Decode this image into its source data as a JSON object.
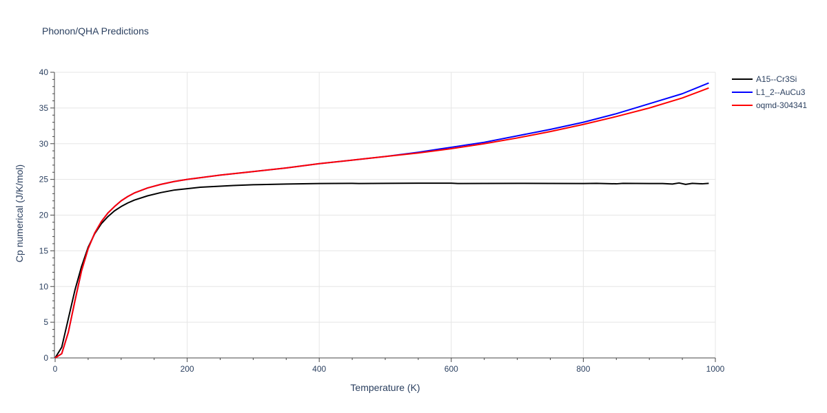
{
  "chart_data": {
    "type": "line",
    "title": "Phonon/QHA Predictions",
    "xlabel": "Temperature (K)",
    "ylabel": "Cp numerical (J/K/mol)",
    "xlim": [
      0,
      1000
    ],
    "ylim": [
      0,
      40
    ],
    "x_ticks": [
      0,
      200,
      400,
      600,
      800,
      1000
    ],
    "y_ticks": [
      0,
      5,
      10,
      15,
      20,
      25,
      30,
      35,
      40
    ],
    "x_tick_labels": [
      "0",
      "200",
      "400",
      "600",
      "800",
      "1000"
    ],
    "y_tick_labels": [
      "0",
      "5",
      "10",
      "15",
      "20",
      "25",
      "30",
      "35",
      "40"
    ],
    "grid": true,
    "legend_position": "top-right outside",
    "series": [
      {
        "name": "A15--Cr3Si",
        "color": "#000000",
        "points": [
          [
            0,
            0
          ],
          [
            10,
            1.5
          ],
          [
            20,
            5.5
          ],
          [
            30,
            9.5
          ],
          [
            40,
            12.8
          ],
          [
            50,
            15.5
          ],
          [
            60,
            17.4
          ],
          [
            70,
            18.8
          ],
          [
            80,
            19.8
          ],
          [
            90,
            20.6
          ],
          [
            100,
            21.2
          ],
          [
            110,
            21.7
          ],
          [
            120,
            22.1
          ],
          [
            140,
            22.7
          ],
          [
            160,
            23.15
          ],
          [
            180,
            23.5
          ],
          [
            200,
            23.7
          ],
          [
            220,
            23.9
          ],
          [
            250,
            24.05
          ],
          [
            270,
            24.15
          ],
          [
            300,
            24.25
          ],
          [
            350,
            24.35
          ],
          [
            400,
            24.42
          ],
          [
            450,
            24.45
          ],
          [
            460,
            24.42
          ],
          [
            500,
            24.45
          ],
          [
            550,
            24.47
          ],
          [
            600,
            24.47
          ],
          [
            610,
            24.42
          ],
          [
            650,
            24.43
          ],
          [
            700,
            24.45
          ],
          [
            750,
            24.44
          ],
          [
            800,
            24.42
          ],
          [
            820,
            24.45
          ],
          [
            850,
            24.38
          ],
          [
            860,
            24.45
          ],
          [
            900,
            24.42
          ],
          [
            920,
            24.42
          ],
          [
            935,
            24.35
          ],
          [
            945,
            24.5
          ],
          [
            955,
            24.3
          ],
          [
            965,
            24.45
          ],
          [
            980,
            24.38
          ],
          [
            990,
            24.45
          ]
        ]
      },
      {
        "name": "L1_2--AuCu3",
        "color": "#0000ff",
        "points": [
          [
            0,
            0
          ],
          [
            10,
            0.6
          ],
          [
            20,
            3.6
          ],
          [
            30,
            8.0
          ],
          [
            40,
            12.2
          ],
          [
            50,
            15.3
          ],
          [
            60,
            17.5
          ],
          [
            70,
            19.1
          ],
          [
            80,
            20.3
          ],
          [
            90,
            21.2
          ],
          [
            100,
            22.0
          ],
          [
            110,
            22.6
          ],
          [
            120,
            23.1
          ],
          [
            140,
            23.8
          ],
          [
            160,
            24.3
          ],
          [
            180,
            24.7
          ],
          [
            200,
            25.0
          ],
          [
            250,
            25.6
          ],
          [
            300,
            26.1
          ],
          [
            350,
            26.6
          ],
          [
            400,
            27.2
          ],
          [
            450,
            27.7
          ],
          [
            500,
            28.2
          ],
          [
            550,
            28.8
          ],
          [
            600,
            29.5
          ],
          [
            650,
            30.2
          ],
          [
            700,
            31.1
          ],
          [
            750,
            32.0
          ],
          [
            800,
            33.0
          ],
          [
            850,
            34.2
          ],
          [
            900,
            35.6
          ],
          [
            950,
            37.0
          ],
          [
            990,
            38.5
          ]
        ]
      },
      {
        "name": "oqmd-304341",
        "color": "#ff0000",
        "points": [
          [
            0,
            0
          ],
          [
            10,
            0.6
          ],
          [
            20,
            3.6
          ],
          [
            30,
            8.0
          ],
          [
            40,
            12.2
          ],
          [
            50,
            15.3
          ],
          [
            60,
            17.5
          ],
          [
            70,
            19.1
          ],
          [
            80,
            20.3
          ],
          [
            90,
            21.2
          ],
          [
            100,
            22.0
          ],
          [
            110,
            22.6
          ],
          [
            120,
            23.1
          ],
          [
            140,
            23.8
          ],
          [
            160,
            24.3
          ],
          [
            180,
            24.7
          ],
          [
            200,
            25.0
          ],
          [
            250,
            25.6
          ],
          [
            300,
            26.1
          ],
          [
            350,
            26.6
          ],
          [
            400,
            27.2
          ],
          [
            450,
            27.7
          ],
          [
            500,
            28.2
          ],
          [
            550,
            28.7
          ],
          [
            600,
            29.3
          ],
          [
            650,
            30.0
          ],
          [
            700,
            30.8
          ],
          [
            750,
            31.7
          ],
          [
            800,
            32.7
          ],
          [
            850,
            33.8
          ],
          [
            900,
            35.0
          ],
          [
            950,
            36.4
          ],
          [
            990,
            37.8
          ]
        ]
      }
    ]
  }
}
